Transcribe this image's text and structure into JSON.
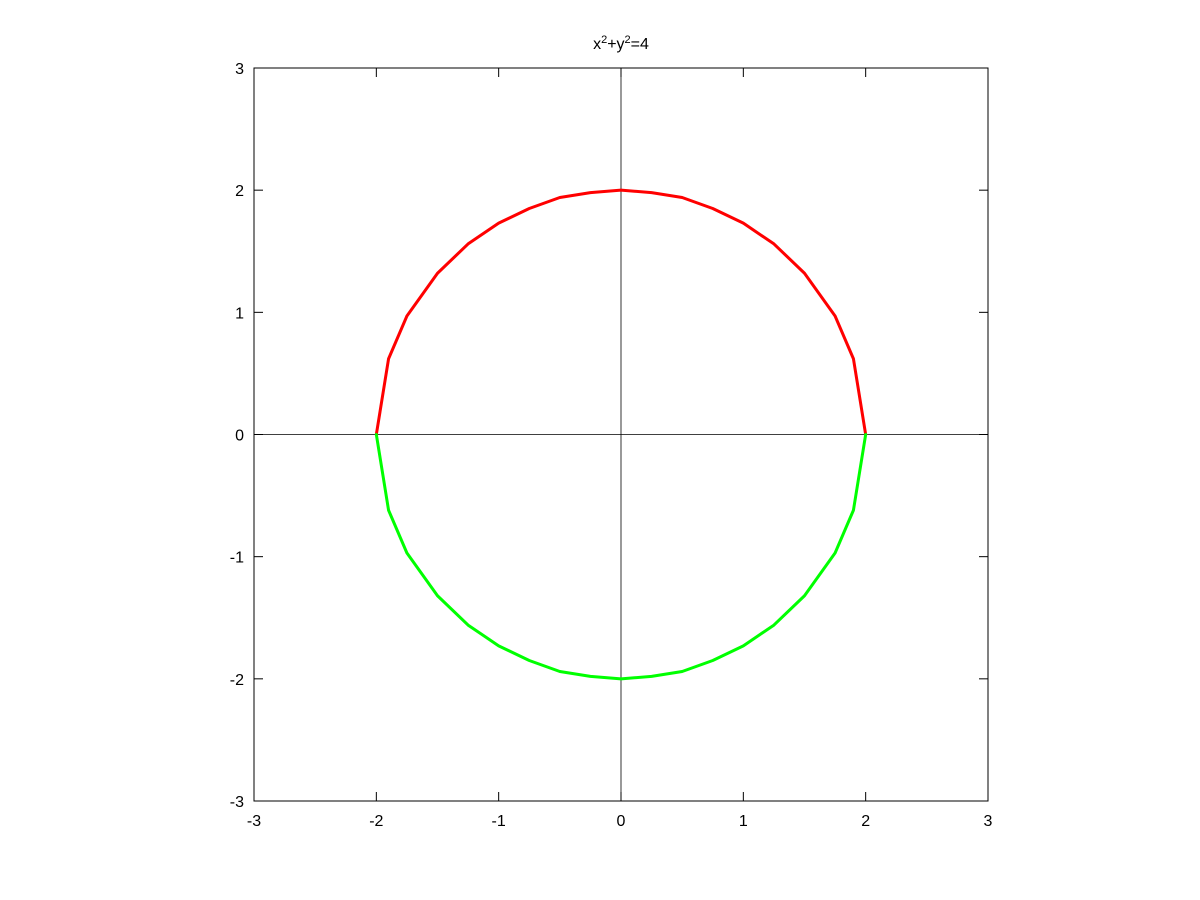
{
  "chart_data": {
    "type": "line",
    "title": {
      "parts": [
        {
          "text": "x",
          "sup": false
        },
        {
          "text": "2",
          "sup": true
        },
        {
          "text": "+y",
          "sup": false
        },
        {
          "text": "2",
          "sup": true
        },
        {
          "text": "=4",
          "sup": false
        }
      ]
    },
    "xlabel": "",
    "ylabel": "",
    "xlim": [
      -3,
      3
    ],
    "ylim": [
      -3,
      3
    ],
    "x_ticks": [
      {
        "value": -3,
        "label": "-3"
      },
      {
        "value": -2,
        "label": "-2"
      },
      {
        "value": -1,
        "label": "-1"
      },
      {
        "value": 0,
        "label": "0"
      },
      {
        "value": 1,
        "label": "1"
      },
      {
        "value": 2,
        "label": "2"
      },
      {
        "value": 3,
        "label": "3"
      }
    ],
    "y_ticks": [
      {
        "value": -3,
        "label": "-3"
      },
      {
        "value": -2,
        "label": "-2"
      },
      {
        "value": -1,
        "label": "-1"
      },
      {
        "value": 0,
        "label": "0"
      },
      {
        "value": 1,
        "label": "1"
      },
      {
        "value": 2,
        "label": "2"
      },
      {
        "value": 3,
        "label": "3"
      }
    ],
    "zero_axes": true,
    "grid": false,
    "legend": "none",
    "series": [
      {
        "color": "#ff0000",
        "x": [
          -2,
          -1.9,
          -1.75,
          -1.5,
          -1.25,
          -1,
          -0.75,
          -0.5,
          -0.25,
          0,
          0.25,
          0.5,
          0.75,
          1,
          1.25,
          1.5,
          1.75,
          1.9,
          2
        ],
        "y": [
          0,
          0.62,
          0.97,
          1.32,
          1.56,
          1.73,
          1.85,
          1.94,
          1.98,
          2,
          1.98,
          1.94,
          1.85,
          1.73,
          1.56,
          1.32,
          0.97,
          0.62,
          0
        ]
      },
      {
        "color": "#00ff00",
        "x": [
          -2,
          -1.9,
          -1.75,
          -1.5,
          -1.25,
          -1,
          -0.75,
          -0.5,
          -0.25,
          0,
          0.25,
          0.5,
          0.75,
          1,
          1.25,
          1.5,
          1.75,
          1.9,
          2
        ],
        "y": [
          0,
          -0.62,
          -0.97,
          -1.32,
          -1.56,
          -1.73,
          -1.85,
          -1.94,
          -1.98,
          -2,
          -1.98,
          -1.94,
          -1.85,
          -1.73,
          -1.56,
          -1.32,
          -0.97,
          -0.62,
          0
        ]
      }
    ]
  }
}
